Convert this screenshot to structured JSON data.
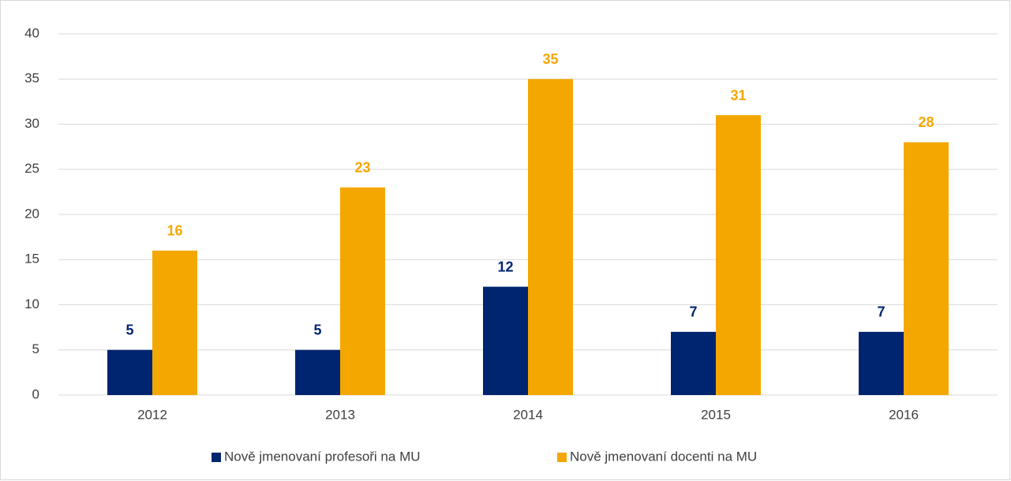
{
  "chart_data": {
    "type": "bar",
    "categories": [
      "2012",
      "2013",
      "2014",
      "2015",
      "2016"
    ],
    "series": [
      {
        "name": "Nově jmenovaní profesoři na MU",
        "color": "#002570",
        "values": [
          5,
          5,
          12,
          7,
          7
        ]
      },
      {
        "name": "Nově jmenovaní docenti na MU",
        "color": "#f4a700",
        "values": [
          16,
          23,
          35,
          31,
          28
        ]
      }
    ],
    "ylim": [
      0,
      40
    ],
    "yticks": [
      0,
      5,
      10,
      15,
      20,
      25,
      30,
      35,
      40
    ],
    "grid": true,
    "legend": "bottom"
  }
}
